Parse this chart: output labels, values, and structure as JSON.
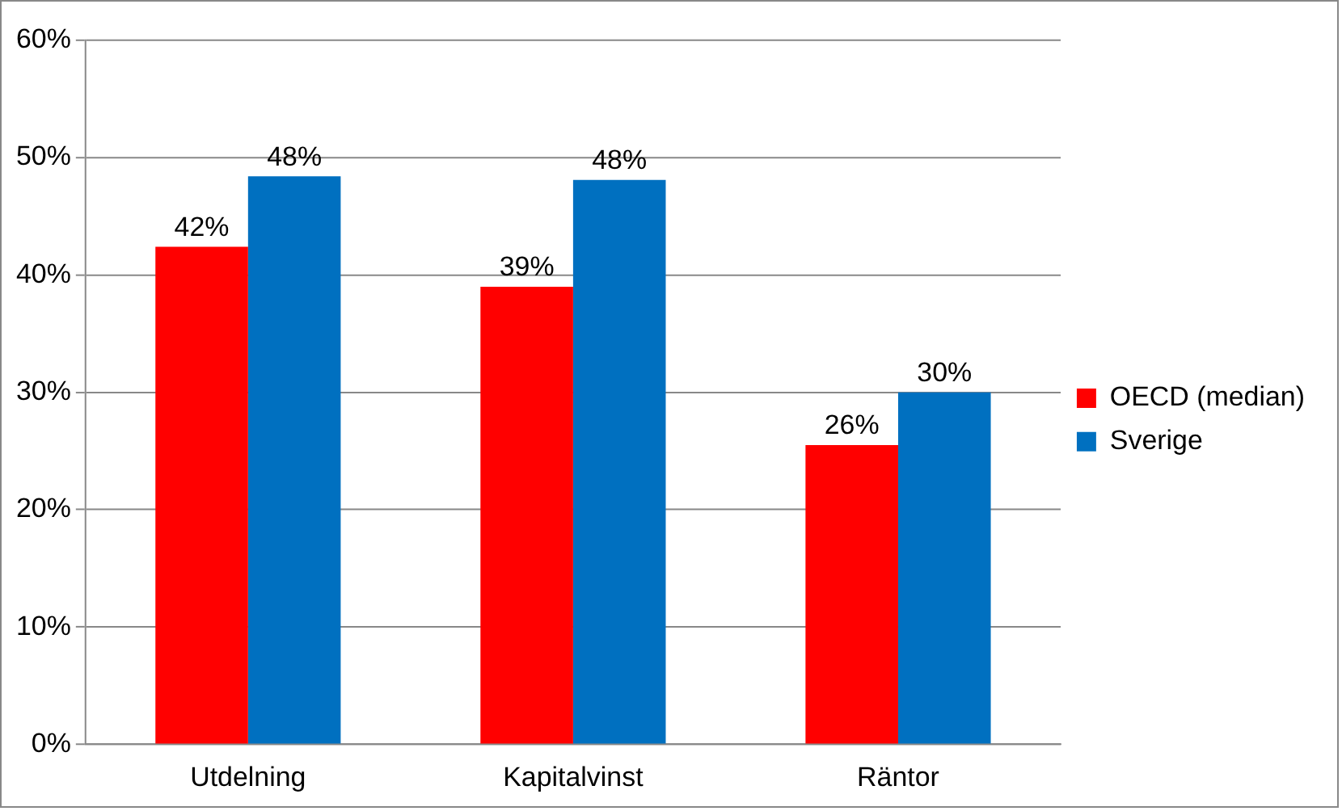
{
  "chart_data": {
    "type": "bar",
    "categories": [
      "Utdelning",
      "Kapitalvinst",
      "Räntor"
    ],
    "series": [
      {
        "name": "OECD (median)",
        "color": "#ff0000",
        "values": [
          42.4,
          39,
          25.5
        ],
        "value_labels": [
          "42%",
          "39%",
          "26%"
        ]
      },
      {
        "name": "Sverige",
        "color": "#0070c0",
        "values": [
          48.4,
          48.1,
          30
        ],
        "value_labels": [
          "48%",
          "48%",
          "30%"
        ]
      }
    ],
    "ylim": [
      0,
      60
    ],
    "yticks": [
      {
        "value": 0,
        "label": "0%"
      },
      {
        "value": 10,
        "label": "10%"
      },
      {
        "value": 20,
        "label": "20%"
      },
      {
        "value": 30,
        "label": "30%"
      },
      {
        "value": 40,
        "label": "40%"
      },
      {
        "value": 50,
        "label": "50%"
      },
      {
        "value": 60,
        "label": "60%"
      }
    ],
    "grid": "y",
    "legend": "right"
  }
}
